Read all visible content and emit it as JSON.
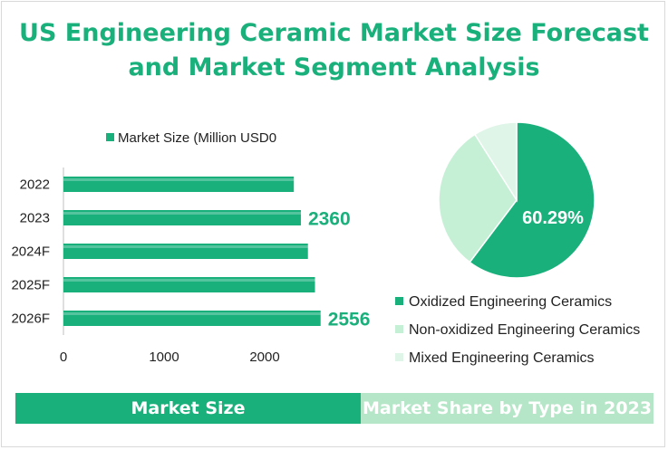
{
  "title": {
    "line1": "US Engineering Ceramic Market Size Forecast",
    "line2": "and Market Segment Analysis"
  },
  "colors": {
    "primary": "#1ab07c",
    "pie_non_oxidized": "#c6f0d6",
    "pie_mixed": "#dff5e7",
    "footer_right": "#b5e6c8"
  },
  "chart_data": [
    {
      "type": "bar",
      "orientation": "horizontal",
      "legend": "Market Size (Million USD0",
      "legend_position": "top",
      "categories": [
        "2022",
        "2023",
        "2024F",
        "2025F",
        "2026F"
      ],
      "values": [
        2290,
        2360,
        2430,
        2500,
        2556
      ],
      "data_labels": [
        {
          "category": "2023",
          "text": "2360"
        },
        {
          "category": "2026F",
          "text": "2556"
        }
      ],
      "x_ticks": [
        "0",
        "1000",
        "2000"
      ],
      "xlim": [
        0,
        3000
      ],
      "grid": false
    },
    {
      "type": "pie",
      "slices": [
        {
          "label": "Oxidized Engineering Ceramics",
          "value": 60.29,
          "color": "#1ab07c"
        },
        {
          "label": "Non-oxidized Engineering Ceramics",
          "value": 30.71,
          "color": "#c6f0d6"
        },
        {
          "label": "Mixed Engineering Ceramics",
          "value": 9.0,
          "color": "#dff5e7"
        }
      ],
      "data_label": "60.29%",
      "legend_position": "bottom"
    }
  ],
  "footer": {
    "left_label": "Market Size",
    "right_label": "Market Share by Type in 2023"
  }
}
